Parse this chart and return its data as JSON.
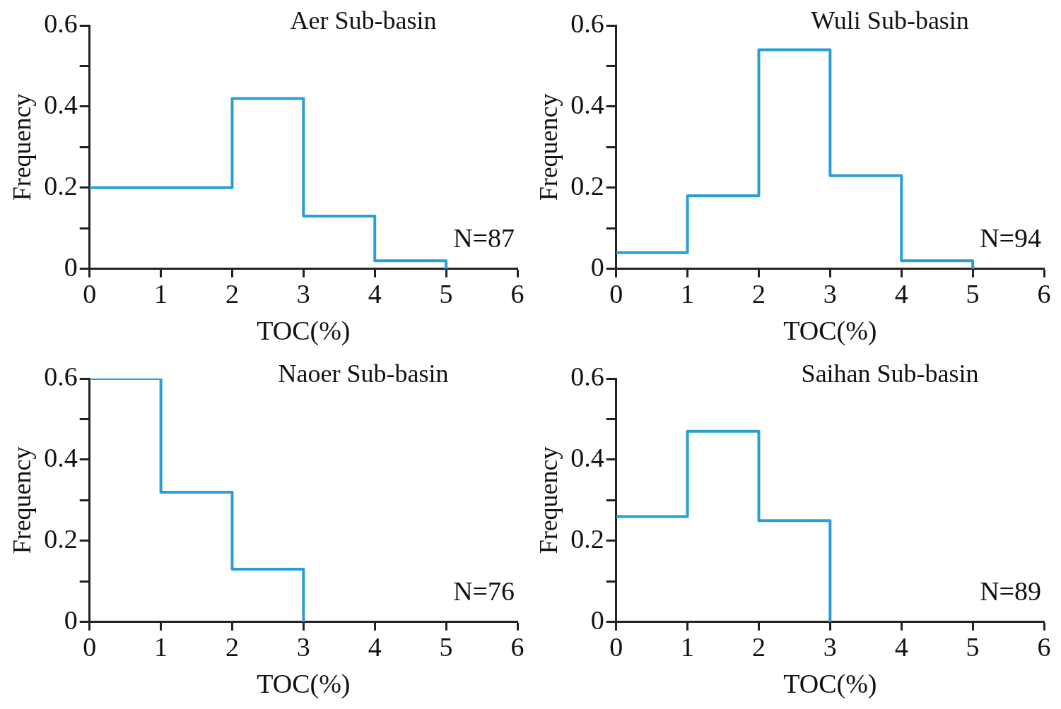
{
  "chart_data": [
    {
      "type": "histogram",
      "title": "Aer Sub-basin",
      "xlabel": "TOC(%)",
      "ylabel": "Frequency",
      "annotations": [
        "N=87"
      ],
      "bins": [
        0,
        1,
        2,
        3,
        4,
        5
      ],
      "values": [
        0.2,
        0.2,
        0.42,
        0.13,
        0.02
      ],
      "color": "#2a9fd6",
      "xlim": [
        0,
        6
      ],
      "xticks": [
        0,
        1,
        2,
        3,
        4,
        5,
        6
      ],
      "ylim": [
        0,
        0.6
      ],
      "yticks": [
        0,
        {
          "value": 0.1,
          "label": null
        },
        0.2,
        {
          "value": 0.3,
          "label": null
        },
        0.4,
        {
          "value": 0.5,
          "label": null
        },
        0.6
      ],
      "legend": false,
      "grid": false
    },
    {
      "type": "histogram",
      "title": "Wuli Sub-basin",
      "xlabel": "TOC(%)",
      "ylabel": "Frequency",
      "annotations": [
        "N=94"
      ],
      "bins": [
        0,
        1,
        2,
        3,
        4,
        5
      ],
      "values": [
        0.04,
        0.18,
        0.54,
        0.23,
        0.02
      ],
      "color": "#2a9fd6",
      "xlim": [
        0,
        6
      ],
      "xticks": [
        0,
        1,
        2,
        3,
        4,
        5,
        6
      ],
      "ylim": [
        0,
        0.6
      ],
      "yticks": [
        0,
        {
          "value": 0.1,
          "label": null
        },
        0.2,
        {
          "value": 0.3,
          "label": null
        },
        0.4,
        {
          "value": 0.5,
          "label": null
        },
        0.6
      ],
      "legend": false,
      "grid": false
    },
    {
      "type": "histogram",
      "title": "Naoer Sub-basin",
      "xlabel": "TOC(%)",
      "ylabel": "Frequency",
      "annotations": [
        "N=76"
      ],
      "bins": [
        0,
        1,
        2,
        3
      ],
      "values": [
        0.6,
        0.32,
        0.13
      ],
      "color": "#2a9fd6",
      "xlim": [
        0,
        6
      ],
      "xticks": [
        0,
        1,
        2,
        3,
        4,
        5,
        6
      ],
      "ylim": [
        0,
        0.6
      ],
      "yticks": [
        0,
        {
          "value": 0.1,
          "label": null
        },
        0.2,
        {
          "value": 0.3,
          "label": null
        },
        0.4,
        {
          "value": 0.5,
          "label": null
        },
        0.6
      ],
      "legend": false,
      "grid": false
    },
    {
      "type": "histogram",
      "title": "Saihan Sub-basin",
      "xlabel": "TOC(%)",
      "ylabel": "Frequency",
      "annotations": [
        "N=89"
      ],
      "bins": [
        0,
        1,
        2,
        3
      ],
      "values": [
        0.26,
        0.47,
        0.25
      ],
      "color": "#2a9fd6",
      "xlim": [
        0,
        6
      ],
      "xticks": [
        0,
        1,
        2,
        3,
        4,
        5,
        6
      ],
      "ylim": [
        0,
        0.6
      ],
      "yticks": [
        0,
        {
          "value": 0.1,
          "label": null
        },
        0.2,
        {
          "value": 0.3,
          "label": null
        },
        0.4,
        {
          "value": 0.5,
          "label": null
        },
        0.6
      ],
      "legend": false,
      "grid": false
    }
  ]
}
